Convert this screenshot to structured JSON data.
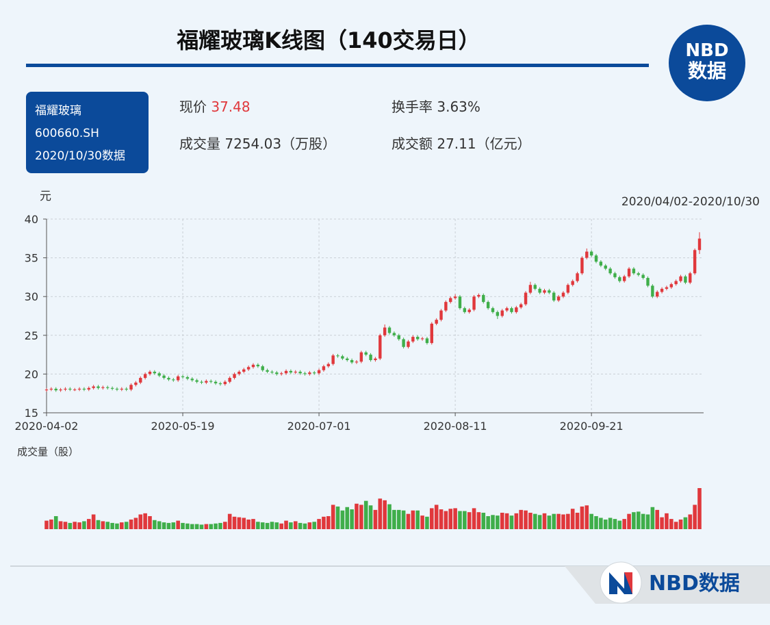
{
  "header": {
    "title": "福耀玻璃K线图（140交易日）"
  },
  "logo": {
    "line1": "NBD",
    "line2": "数据"
  },
  "stock": {
    "name": "福耀玻璃",
    "code": "600660.SH",
    "date": "2020/10/30数据"
  },
  "stats": [
    {
      "label": "现价",
      "value": "37.48"
    },
    {
      "label": "换手率",
      "value": "3.63%"
    },
    {
      "label": "成交量",
      "value": "7254.03",
      "unit": "（万股）"
    },
    {
      "label": "成交额",
      "value": "27.11",
      "unit": "（亿元）"
    }
  ],
  "footer": {
    "brand": "NBD数据"
  },
  "chart_data": {
    "type": "candlestick",
    "y_label": "元",
    "range_label": "2020/04/02-2020/10/30",
    "volume_label": "成交量（股）",
    "categories": [
      "2020-04-02",
      null,
      null,
      null,
      null,
      null,
      null,
      null,
      null,
      null,
      null,
      null,
      null,
      null,
      null,
      null,
      null,
      null,
      null,
      null,
      null,
      null,
      null,
      null,
      null,
      null,
      null,
      null,
      null,
      "2020-05-19",
      null,
      null,
      null,
      null,
      null,
      null,
      null,
      null,
      null,
      null,
      null,
      null,
      null,
      null,
      null,
      null,
      null,
      null,
      null,
      null,
      null,
      null,
      null,
      null,
      null,
      null,
      null,
      null,
      "2020-07-01",
      null,
      null,
      null,
      null,
      null,
      null,
      null,
      null,
      null,
      null,
      null,
      null,
      null,
      null,
      null,
      null,
      null,
      null,
      null,
      null,
      null,
      null,
      null,
      null,
      null,
      null,
      null,
      null,
      "2020-08-11",
      null,
      null,
      null,
      null,
      null,
      null,
      null,
      null,
      null,
      null,
      null,
      null,
      null,
      null,
      null,
      null,
      null,
      null,
      null,
      null,
      null,
      null,
      null,
      null,
      null,
      null,
      null,
      null,
      "2020-09-21",
      null,
      null,
      null,
      null,
      null,
      null,
      null,
      null,
      null,
      null,
      null,
      null,
      null,
      null,
      null,
      null,
      null,
      null,
      null,
      null,
      null,
      null,
      null
    ],
    "open": [
      17.9,
      18.0,
      18.1,
      17.9,
      18.0,
      18.1,
      18.0,
      18.0,
      18.1,
      18.0,
      18.2,
      18.4,
      18.2,
      18.3,
      18.2,
      18.1,
      18.0,
      18.1,
      18.0,
      18.6,
      18.9,
      19.5,
      20.0,
      20.3,
      20.1,
      19.8,
      19.5,
      19.3,
      19.2,
      19.7,
      19.6,
      19.4,
      19.2,
      19.0,
      18.9,
      19.1,
      19.0,
      18.8,
      18.7,
      19.0,
      19.5,
      20.0,
      20.3,
      20.6,
      20.9,
      21.2,
      21.0,
      20.5,
      20.3,
      20.2,
      20.0,
      20.1,
      20.4,
      20.2,
      20.3,
      20.1,
      20.0,
      20.2,
      20.1,
      20.5,
      21.0,
      21.3,
      22.4,
      22.3,
      22.0,
      21.8,
      21.5,
      21.6,
      22.8,
      22.5,
      21.8,
      22.0,
      25.0,
      26.0,
      25.3,
      25.0,
      24.5,
      23.5,
      24.2,
      24.8,
      24.5,
      24.6,
      24.0,
      26.5,
      27.0,
      28.2,
      29.3,
      29.8,
      30.0,
      28.5,
      28.0,
      28.3,
      30.0,
      30.2,
      29.3,
      28.5,
      28.0,
      27.5,
      28.2,
      28.5,
      28.0,
      28.6,
      29.0,
      30.5,
      31.5,
      31.0,
      30.5,
      30.8,
      30.5,
      29.5,
      30.0,
      30.5,
      31.5,
      32.0,
      33.0,
      35.0,
      35.8,
      35.3,
      34.5,
      34.0,
      33.6,
      33.0,
      32.5,
      32.0,
      32.6,
      33.6,
      33.0,
      32.8,
      32.4,
      31.4,
      30.0,
      30.6,
      31.0,
      31.2,
      31.6,
      32.0,
      32.6,
      31.8,
      33.0,
      36.0
    ],
    "high": [
      18.2,
      18.3,
      18.3,
      18.2,
      18.3,
      18.3,
      18.2,
      18.3,
      18.3,
      18.4,
      18.6,
      18.6,
      18.5,
      18.5,
      18.4,
      18.3,
      18.3,
      18.3,
      18.8,
      19.1,
      19.7,
      20.2,
      20.5,
      20.5,
      20.3,
      20.0,
      19.7,
      19.5,
      19.9,
      19.9,
      19.8,
      19.6,
      19.4,
      19.2,
      19.3,
      19.3,
      19.2,
      19.0,
      19.2,
      19.7,
      20.2,
      20.5,
      20.8,
      21.1,
      21.4,
      21.4,
      21.2,
      20.7,
      20.5,
      20.4,
      20.3,
      20.6,
      20.6,
      20.5,
      20.5,
      20.3,
      20.4,
      20.4,
      20.7,
      21.2,
      21.5,
      22.6,
      22.6,
      22.5,
      22.2,
      22.0,
      21.8,
      23.0,
      23.0,
      22.7,
      22.2,
      25.2,
      26.4,
      26.2,
      25.5,
      25.2,
      24.7,
      24.4,
      25.0,
      25.0,
      24.8,
      24.8,
      26.7,
      27.2,
      28.4,
      29.5,
      30.0,
      30.3,
      30.2,
      28.7,
      28.5,
      30.2,
      30.4,
      30.4,
      29.5,
      28.7,
      28.2,
      28.4,
      28.7,
      28.7,
      28.8,
      29.2,
      30.7,
      31.9,
      31.7,
      31.2,
      31.0,
      31.0,
      30.7,
      30.2,
      30.7,
      31.7,
      32.2,
      33.2,
      35.2,
      36.2,
      36.0,
      35.5,
      34.7,
      34.2,
      33.8,
      33.2,
      32.7,
      32.8,
      33.8,
      33.8,
      33.2,
      33.0,
      32.6,
      31.6,
      30.8,
      31.2,
      31.4,
      31.8,
      32.2,
      32.8,
      32.8,
      33.2,
      36.2,
      38.3
    ],
    "low": [
      17.7,
      17.8,
      17.7,
      17.7,
      17.8,
      17.8,
      17.8,
      17.8,
      17.8,
      17.8,
      18.0,
      18.0,
      18.0,
      18.0,
      17.9,
      17.8,
      17.8,
      17.8,
      17.8,
      18.4,
      18.7,
      19.3,
      19.8,
      19.9,
      19.6,
      19.3,
      19.1,
      19.0,
      19.0,
      19.4,
      19.2,
      19.0,
      18.8,
      18.7,
      18.7,
      18.8,
      18.6,
      18.5,
      18.5,
      18.8,
      19.3,
      19.8,
      20.1,
      20.4,
      20.7,
      20.8,
      20.3,
      20.1,
      20.0,
      19.8,
      19.8,
      19.9,
      20.0,
      20.0,
      19.9,
      19.8,
      19.8,
      19.9,
      19.9,
      20.3,
      20.8,
      21.1,
      22.1,
      21.8,
      21.6,
      21.3,
      21.3,
      21.4,
      22.3,
      21.6,
      21.6,
      21.8,
      24.8,
      25.1,
      24.8,
      24.3,
      23.3,
      23.3,
      24.0,
      24.3,
      24.3,
      23.8,
      23.8,
      26.3,
      26.8,
      28.0,
      29.1,
      29.6,
      28.3,
      27.8,
      27.8,
      28.1,
      29.8,
      29.1,
      28.3,
      27.8,
      27.1,
      27.3,
      28.0,
      27.8,
      27.8,
      28.4,
      28.8,
      30.3,
      30.8,
      30.3,
      30.3,
      30.3,
      29.3,
      29.3,
      29.8,
      30.3,
      31.3,
      31.8,
      32.8,
      34.8,
      35.1,
      34.3,
      33.8,
      33.4,
      32.8,
      32.3,
      31.8,
      31.8,
      32.4,
      32.8,
      32.6,
      32.2,
      31.2,
      29.8,
      29.8,
      30.4,
      30.8,
      31.0,
      31.4,
      31.8,
      31.6,
      31.6,
      32.8,
      35.5
    ],
    "close": [
      18.0,
      18.1,
      17.9,
      18.0,
      18.1,
      18.0,
      18.0,
      18.1,
      18.0,
      18.2,
      18.4,
      18.2,
      18.3,
      18.2,
      18.1,
      18.0,
      18.1,
      18.0,
      18.6,
      18.9,
      19.5,
      20.0,
      20.3,
      20.1,
      19.8,
      19.5,
      19.3,
      19.2,
      19.7,
      19.6,
      19.4,
      19.2,
      19.0,
      18.9,
      19.1,
      19.0,
      18.8,
      18.7,
      19.0,
      19.5,
      20.0,
      20.3,
      20.6,
      20.9,
      21.2,
      21.0,
      20.5,
      20.3,
      20.2,
      20.0,
      20.1,
      20.4,
      20.2,
      20.3,
      20.1,
      20.0,
      20.2,
      20.1,
      20.5,
      21.0,
      21.3,
      22.4,
      22.3,
      22.0,
      21.8,
      21.5,
      21.6,
      22.8,
      22.5,
      21.8,
      22.0,
      25.0,
      26.0,
      25.3,
      25.0,
      24.5,
      23.5,
      24.2,
      24.8,
      24.5,
      24.6,
      24.0,
      26.5,
      27.0,
      28.2,
      29.3,
      29.8,
      30.0,
      28.5,
      28.0,
      28.3,
      30.0,
      30.2,
      29.3,
      28.5,
      28.0,
      27.5,
      28.2,
      28.5,
      28.0,
      28.6,
      29.0,
      30.5,
      31.5,
      31.0,
      30.5,
      30.8,
      30.5,
      29.5,
      30.0,
      30.5,
      31.5,
      32.0,
      33.0,
      35.0,
      35.8,
      35.3,
      34.5,
      34.0,
      33.6,
      33.0,
      32.5,
      32.0,
      32.6,
      33.6,
      33.0,
      32.8,
      32.4,
      31.4,
      30.0,
      30.6,
      31.0,
      31.2,
      31.6,
      32.0,
      32.6,
      31.8,
      33.0,
      36.0,
      37.48
    ],
    "volume": [
      1500,
      1700,
      2300,
      1400,
      1300,
      1100,
      1300,
      1200,
      1400,
      1800,
      2600,
      1600,
      1400,
      1300,
      1100,
      1000,
      1200,
      1300,
      1700,
      2000,
      2600,
      2800,
      2300,
      1600,
      1400,
      1200,
      1100,
      1200,
      1500,
      1100,
      1000,
      900,
      900,
      800,
      900,
      900,
      1000,
      1100,
      1300,
      2700,
      2200,
      2100,
      2000,
      1700,
      1800,
      1300,
      1200,
      1100,
      1300,
      1200,
      1000,
      1500,
      1200,
      1400,
      1100,
      1000,
      1200,
      1300,
      1800,
      2200,
      2300,
      4300,
      4000,
      3300,
      3900,
      3500,
      4500,
      4300,
      5000,
      4200,
      3400,
      5400,
      5100,
      4400,
      3400,
      3400,
      3300,
      2700,
      3300,
      3300,
      2400,
      2200,
      3700,
      4300,
      3500,
      3200,
      3600,
      3700,
      3200,
      3200,
      3000,
      3700,
      3000,
      2900,
      2300,
      2500,
      2400,
      2900,
      2800,
      2400,
      2800,
      3400,
      3300,
      2900,
      2700,
      2500,
      2800,
      2400,
      2700,
      2700,
      2600,
      2700,
      3600,
      2900,
      4000,
      4200,
      2700,
      2300,
      2000,
      1700,
      2000,
      1800,
      1500,
      1800,
      2700,
      3000,
      3100,
      2700,
      2600,
      3900,
      3400,
      2100,
      2800,
      1800,
      1300,
      1700,
      2100,
      2600,
      4300,
      7254.03
    ],
    "ylim": [
      15,
      40
    ],
    "yticks": [
      15,
      20,
      25,
      30,
      35,
      40
    ],
    "grid": true,
    "up_color": "#e0383c",
    "down_color": "#3fae4a"
  }
}
